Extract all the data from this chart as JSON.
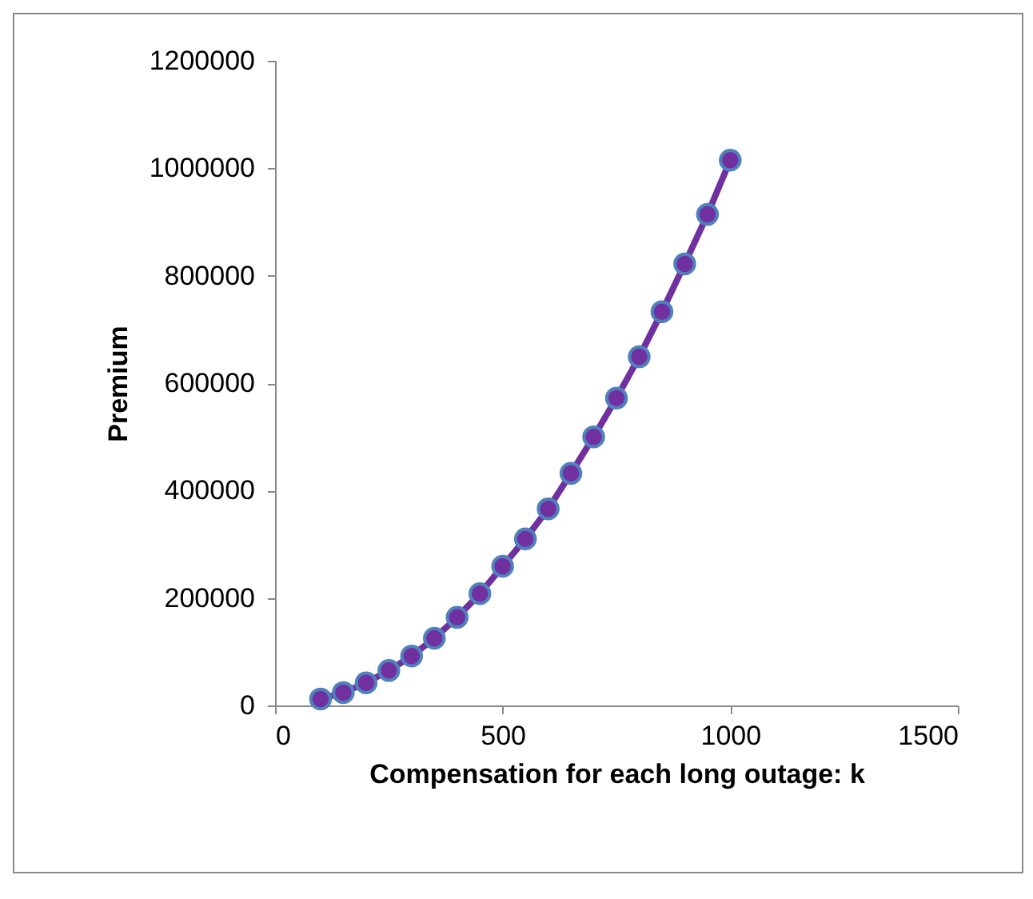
{
  "chart_data": {
    "type": "line",
    "xlabel": "Compensation for each long outage: k",
    "ylabel": "Premium",
    "x": [
      100,
      150,
      200,
      250,
      300,
      350,
      400,
      450,
      500,
      550,
      600,
      650,
      700,
      750,
      800,
      850,
      900,
      950,
      1000
    ],
    "series": [
      {
        "color": "#7030a0",
        "values": [
          12000,
          24000,
          42000,
          65000,
          92000,
          125000,
          164000,
          208000,
          259000,
          310000,
          366000,
          432000,
          500000,
          572000,
          649000,
          733000,
          822000,
          914000,
          1015000
        ]
      }
    ],
    "xlim": [
      0,
      1500
    ],
    "xticks": [
      0,
      500,
      1000,
      1500
    ],
    "ylim": [
      0,
      1200000
    ],
    "yticks": [
      0,
      200000,
      400000,
      600000,
      800000,
      1000000,
      1200000
    ],
    "grid": false,
    "legend": false,
    "marker": "circle",
    "line_style": "solid"
  }
}
